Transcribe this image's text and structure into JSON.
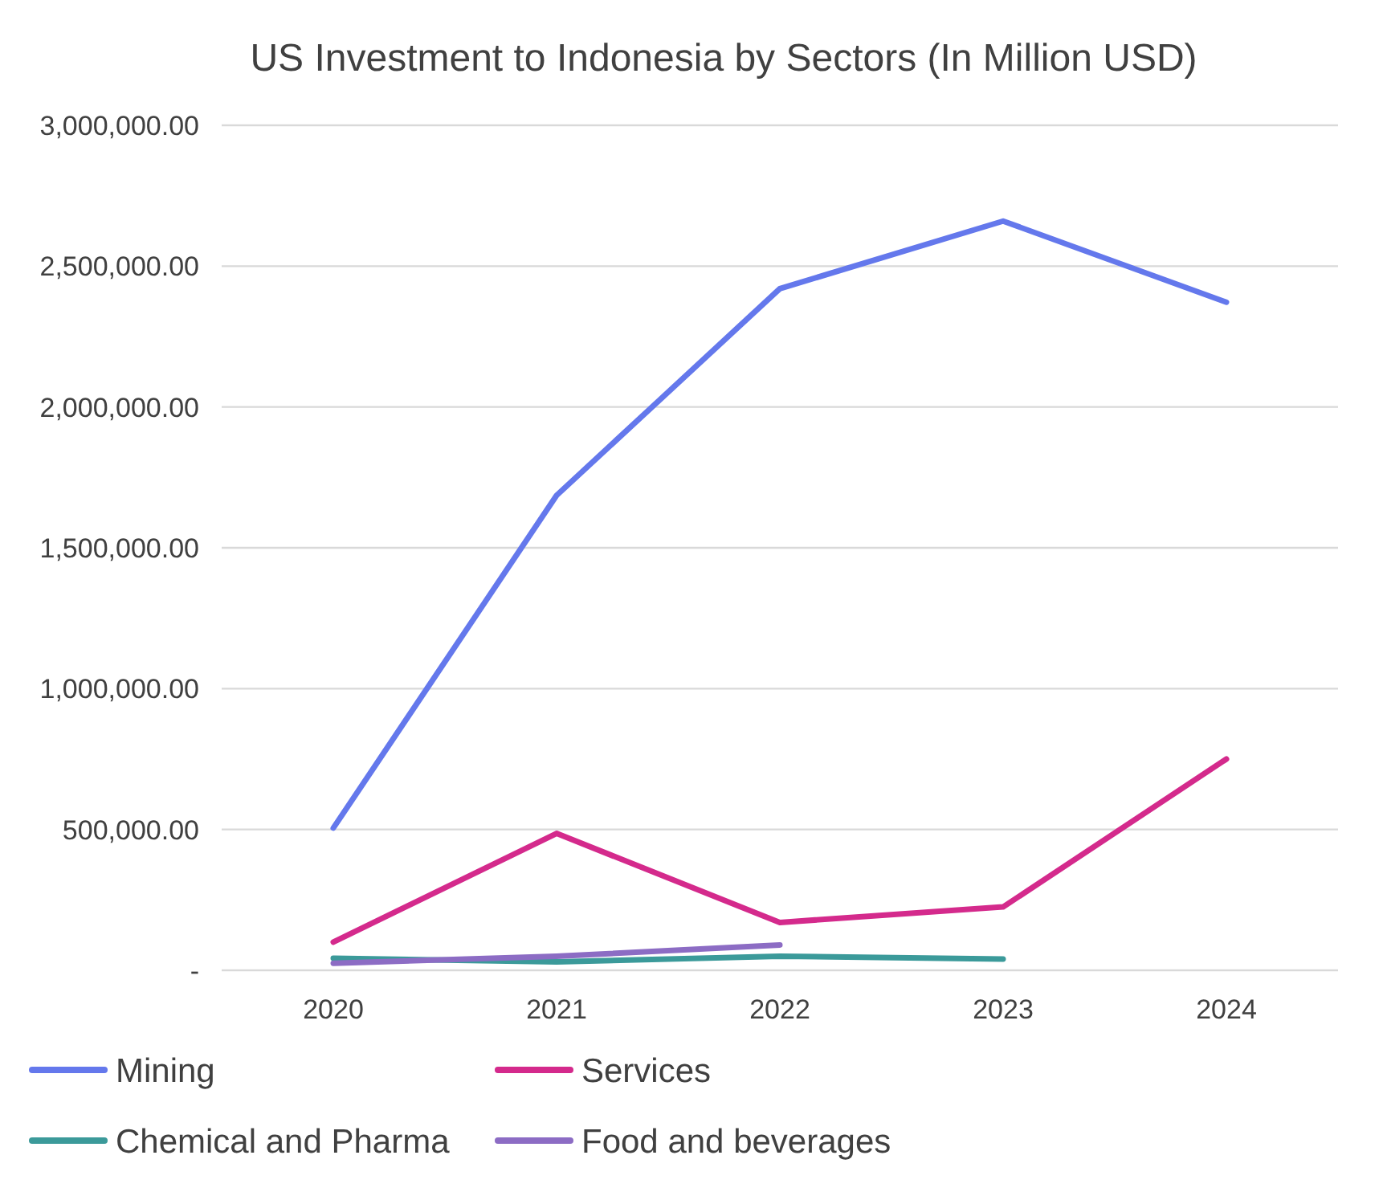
{
  "chart_data": {
    "type": "line",
    "title": "US Investment to Indonesia by Sectors (In Million USD)",
    "categories": [
      "2020",
      "2021",
      "2022",
      "2023",
      "2024"
    ],
    "series": [
      {
        "name": "Mining",
        "color": "#6478ec",
        "values": [
          505000,
          1686000,
          2420000,
          2660000,
          2372000
        ]
      },
      {
        "name": "Services",
        "color": "#d42a8c",
        "values": [
          100000,
          486000,
          170000,
          225000,
          750000
        ]
      },
      {
        "name": "Chemical and Pharma",
        "color": "#3b9a9a",
        "values": [
          43000,
          30000,
          50000,
          40000,
          null
        ]
      },
      {
        "name": "Food and beverages",
        "color": "#8c6cc4",
        "values": [
          25000,
          50000,
          90000,
          null,
          null
        ]
      }
    ],
    "ylim": [
      0,
      3000000
    ],
    "yticks": [
      {
        "value": 0,
        "label": "-"
      },
      {
        "value": 500000,
        "label": "500,000.00"
      },
      {
        "value": 1000000,
        "label": "1,000,000.00"
      },
      {
        "value": 1500000,
        "label": "1,500,000.00"
      },
      {
        "value": 2000000,
        "label": "2,000,000.00"
      },
      {
        "value": 2500000,
        "label": "2,500,000.00"
      },
      {
        "value": 3000000,
        "label": "3,000,000.00"
      }
    ],
    "grid": "y",
    "legend": "bottom",
    "marker": "none",
    "line_style": "solid"
  }
}
